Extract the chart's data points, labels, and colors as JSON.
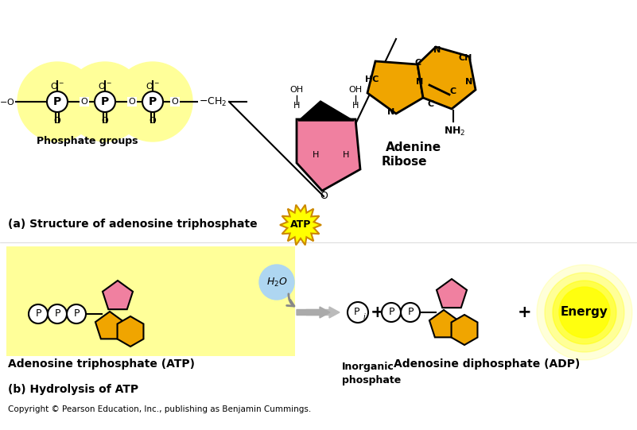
{
  "bg_color": "#ffffff",
  "yellow_light": "#ffff99",
  "yellow_orange": "#f0a500",
  "pink": "#f080a0",
  "gray": "#999999",
  "light_blue": "#aed6f1",
  "title_a": "(a) Structure of adenosine triphosphate",
  "title_b": "(b) Hydrolysis of ATP",
  "copyright": "Copyright © Pearson Education, Inc., publishing as Benjamin Cummings.",
  "adenine_label": "Adenine",
  "ribose_label": "Ribose",
  "phosphate_label": "Phosphate groups",
  "atp_label": "Adenosine triphosphate (ATP)",
  "inorganic_label": "Inorganic\nphosphate",
  "adp_label": "Adenosine diphosphate (ADP)",
  "energy_label": "Energy",
  "h2o_label": "H₂O"
}
